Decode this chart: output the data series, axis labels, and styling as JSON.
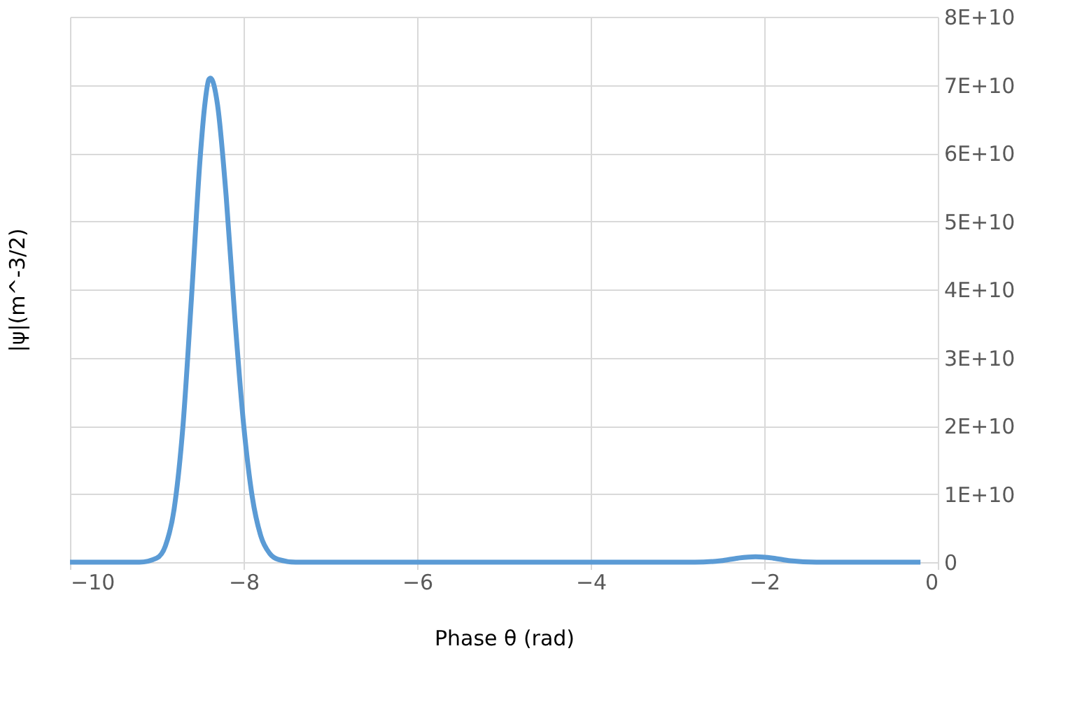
{
  "chart_data": {
    "type": "line",
    "xlabel": "Phase θ (rad)",
    "ylabel": "|ψ|(m^-3/2)",
    "x": [
      -10,
      -9.2,
      -9.0,
      -8.9,
      -8.8,
      -8.7,
      -8.6,
      -8.5,
      -8.45,
      -8.4,
      -8.38,
      -8.3,
      -8.2,
      -8.1,
      -8.0,
      -7.9,
      -7.8,
      -7.7,
      -7.6,
      -7.4,
      -5,
      -2.8,
      -2.5,
      -2.3,
      -2.1,
      -1.9,
      -1.7,
      -1.4,
      -0.2
    ],
    "series": [
      {
        "color": "#5b9bd5",
        "values": [
          0,
          0,
          600000000,
          2400000000,
          7800000000,
          19700000000,
          38800000000,
          59300000000,
          66700000000,
          70800000000,
          71000000000,
          67100000000,
          53600000000,
          35800000000,
          20300000000,
          9600000000,
          3800000000,
          1300000000,
          400000000,
          0,
          0,
          0,
          200000000,
          600000000,
          800000000,
          600000000,
          200000000,
          0,
          0
        ]
      }
    ],
    "xlim": [
      -10,
      0
    ],
    "xticks": [
      -10,
      -8,
      -6,
      -4,
      -2,
      0
    ],
    "ylim": [
      0,
      80000000000
    ],
    "yticks": [
      {
        "value": 0,
        "label": "0"
      },
      {
        "value": 10000000000,
        "label": "1E+10"
      },
      {
        "value": 20000000000,
        "label": "2E+10"
      },
      {
        "value": 30000000000,
        "label": "3E+10"
      },
      {
        "value": 40000000000,
        "label": "4E+10"
      },
      {
        "value": 50000000000,
        "label": "5E+10"
      },
      {
        "value": 60000000000,
        "label": "6E+10"
      },
      {
        "value": 70000000000,
        "label": "7E+10"
      },
      {
        "value": 80000000000,
        "label": "8E+10"
      }
    ],
    "grid": true,
    "legend": false,
    "marker": "none",
    "line_style": "solid"
  }
}
